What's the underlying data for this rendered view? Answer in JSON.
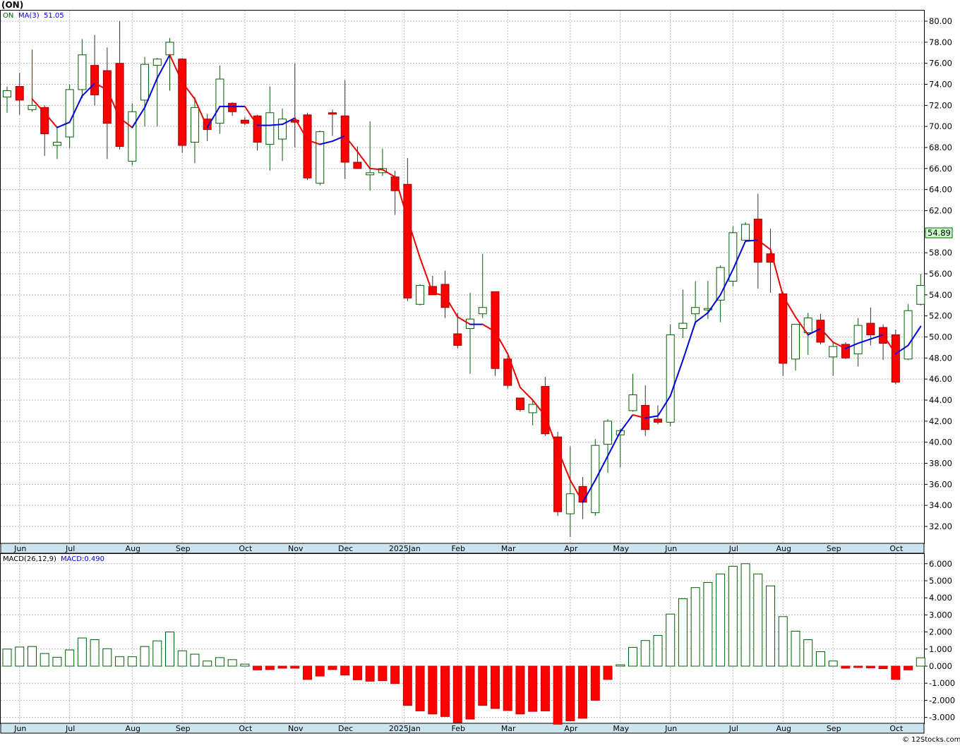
{
  "header": {
    "ticker": "(ON)"
  },
  "legend": {
    "symbol": "ON",
    "ma_label": "MA(3)",
    "ma_value": "51.05",
    "macd_label": "MACD(26,12,9)",
    "macd_value_label": "MACD:0.490"
  },
  "last_price_label": "54.89",
  "credit": "© 12Stocks.com",
  "colors": {
    "up_body": "#ffffff",
    "up_outline": "#006000",
    "down_body": "#ff0000",
    "ma_down": "#ee0000",
    "ma_up": "#0000dd",
    "axis_band": "#cce4f0",
    "grid": "#bbbbbb",
    "last_price_box": "#ccffcc"
  },
  "chart_data": [
    {
      "type": "candlestick",
      "title": "",
      "timeframe": "weekly",
      "ylim": [
        31,
        81
      ],
      "y_ticks": [
        "32.00",
        "34.00",
        "36.00",
        "38.00",
        "40.00",
        "42.00",
        "44.00",
        "46.00",
        "48.00",
        "50.00",
        "52.00",
        "54.00",
        "56.00",
        "58.00",
        "60.00",
        "62.00",
        "64.00",
        "66.00",
        "68.00",
        "70.00",
        "72.00",
        "74.00",
        "76.00",
        "78.00",
        "80.00"
      ],
      "x_ticks": [
        {
          "label": "Jun",
          "index": 1
        },
        {
          "label": "Jul",
          "index": 5
        },
        {
          "label": "Aug",
          "index": 10
        },
        {
          "label": "Sep",
          "index": 14
        },
        {
          "label": "Oct",
          "index": 19
        },
        {
          "label": "Nov",
          "index": 23
        },
        {
          "label": "Dec",
          "index": 27
        },
        {
          "label": "2025Jan",
          "index": 32
        },
        {
          "label": "Feb",
          "index": 36
        },
        {
          "label": "Mar",
          "index": 40
        },
        {
          "label": "Apr",
          "index": 45
        },
        {
          "label": "May",
          "index": 49
        },
        {
          "label": "Jun",
          "index": 53
        },
        {
          "label": "Jul",
          "index": 58
        },
        {
          "label": "Aug",
          "index": 62
        },
        {
          "label": "Sep",
          "index": 66
        },
        {
          "label": "Oct",
          "index": 71
        }
      ],
      "candles": [
        [
          72.8,
          73.8,
          71.3,
          73.4
        ],
        [
          73.8,
          75.1,
          71.1,
          72.5
        ],
        [
          71.6,
          77.3,
          71.4,
          72.0
        ],
        [
          71.8,
          72.0,
          67.2,
          69.3
        ],
        [
          68.2,
          69.9,
          66.9,
          68.5
        ],
        [
          69.0,
          74.0,
          67.9,
          73.5
        ],
        [
          73.5,
          78.3,
          72.7,
          76.8
        ],
        [
          75.8,
          78.7,
          72.0,
          73.0
        ],
        [
          75.3,
          77.5,
          66.9,
          70.3
        ],
        [
          76.0,
          80.0,
          67.8,
          68.1
        ],
        [
          66.7,
          72.2,
          66.3,
          71.4
        ],
        [
          72.5,
          76.6,
          70.0,
          75.9
        ],
        [
          75.8,
          76.5,
          70.0,
          76.4
        ],
        [
          76.8,
          78.4,
          73.4,
          78.0
        ],
        [
          76.4,
          76.5,
          67.5,
          68.2
        ],
        [
          68.5,
          72.8,
          66.5,
          71.8
        ],
        [
          70.7,
          71.2,
          68.6,
          69.7
        ],
        [
          70.3,
          75.8,
          69.3,
          74.5
        ],
        [
          72.2,
          72.3,
          71.0,
          71.4
        ],
        [
          70.6,
          70.9,
          70.1,
          70.3
        ],
        [
          71.0,
          71.1,
          67.7,
          68.5
        ],
        [
          68.3,
          73.8,
          65.8,
          71.3
        ],
        [
          68.8,
          71.7,
          66.7,
          70.7
        ],
        [
          70.6,
          76.0,
          68.0,
          70.4
        ],
        [
          71.1,
          71.3,
          64.9,
          65.1
        ],
        [
          64.6,
          69.6,
          64.4,
          69.5
        ],
        [
          71.3,
          71.6,
          69.1,
          71.2
        ],
        [
          71.0,
          74.4,
          65.0,
          66.6
        ],
        [
          66.6,
          68.1,
          66.1,
          66.0
        ],
        [
          65.4,
          70.5,
          63.9,
          65.6
        ],
        [
          65.6,
          67.9,
          65.3,
          66.0
        ],
        [
          65.2,
          65.8,
          61.6,
          63.9
        ],
        [
          64.5,
          67.0,
          53.4,
          53.7
        ],
        [
          53.1,
          55.0,
          53.0,
          54.9
        ],
        [
          54.8,
          55.8,
          54.1,
          54.0
        ],
        [
          55.0,
          56.3,
          51.8,
          52.8
        ],
        [
          50.3,
          52.3,
          48.9,
          49.2
        ],
        [
          50.8,
          54.2,
          46.5,
          51.7
        ],
        [
          52.2,
          57.9,
          51.8,
          52.8
        ],
        [
          54.3,
          54.3,
          46.3,
          47.0
        ],
        [
          47.9,
          48.2,
          45.1,
          45.4
        ],
        [
          44.2,
          44.2,
          42.9,
          43.1
        ],
        [
          42.8,
          44.0,
          41.6,
          43.6
        ],
        [
          45.3,
          46.2,
          40.6,
          40.8
        ],
        [
          40.5,
          41.0,
          33.0,
          33.4
        ],
        [
          33.2,
          39.6,
          31.0,
          35.1
        ],
        [
          35.8,
          36.7,
          32.7,
          34.3
        ],
        [
          33.3,
          40.3,
          33.0,
          39.7
        ],
        [
          39.8,
          42.2,
          37.1,
          42.0
        ],
        [
          40.7,
          41.3,
          37.6,
          41.1
        ],
        [
          43.0,
          46.5,
          42.9,
          44.5
        ],
        [
          43.5,
          45.4,
          40.6,
          41.2
        ],
        [
          42.2,
          43.5,
          41.7,
          41.9
        ],
        [
          41.9,
          51.2,
          41.5,
          50.2
        ],
        [
          50.8,
          54.5,
          49.9,
          51.3
        ],
        [
          52.2,
          55.3,
          51.2,
          52.8
        ],
        [
          52.6,
          55.3,
          51.7,
          52.7
        ],
        [
          53.5,
          56.8,
          51.4,
          56.6
        ],
        [
          55.3,
          60.5,
          54.8,
          59.9
        ],
        [
          59.2,
          60.9,
          59.1,
          60.7
        ],
        [
          61.2,
          63.6,
          54.6,
          57.1
        ],
        [
          57.9,
          60.3,
          54.2,
          57.1
        ],
        [
          54.1,
          54.3,
          46.3,
          47.5
        ],
        [
          47.9,
          51.2,
          46.8,
          51.2
        ],
        [
          50.4,
          52.3,
          48.3,
          51.8
        ],
        [
          51.6,
          52.2,
          49.3,
          49.5
        ],
        [
          48.1,
          49.5,
          46.3,
          49.1
        ],
        [
          49.3,
          49.5,
          47.9,
          48.0
        ],
        [
          48.4,
          51.8,
          47.2,
          51.1
        ],
        [
          51.3,
          52.8,
          49.2,
          50.2
        ],
        [
          50.9,
          51.2,
          47.8,
          49.4
        ],
        [
          50.2,
          50.7,
          45.5,
          45.7
        ],
        [
          47.9,
          53.1,
          47.8,
          52.5
        ],
        [
          53.1,
          56.0,
          53.0,
          54.89
        ]
      ],
      "ma3": [
        null,
        null,
        72.6,
        71.3,
        69.9,
        70.4,
        72.9,
        74.1,
        73.5,
        70.8,
        69.9,
        71.8,
        74.6,
        76.8,
        74.2,
        72.6,
        69.9,
        71.9,
        71.9,
        71.9,
        70.1,
        70.1,
        70.2,
        70.8,
        68.7,
        68.3,
        68.6,
        69.1,
        67.6,
        66.0,
        65.9,
        65.2,
        61.2,
        57.5,
        54.2,
        53.9,
        51.9,
        51.2,
        51.2,
        50.5,
        48.4,
        45.2,
        44.0,
        42.5,
        39.3,
        36.4,
        34.3,
        36.4,
        38.7,
        41.0,
        42.6,
        42.3,
        42.5,
        44.4,
        47.8,
        51.4,
        52.3,
        54.0,
        56.4,
        59.1,
        59.2,
        58.3,
        53.9,
        51.9,
        50.2,
        50.8,
        49.5,
        48.9,
        49.4,
        49.8,
        50.2,
        48.4,
        49.2,
        51.0
      ],
      "macd_label": "MACD(26,12,9)",
      "macd_ylim": [
        -3.5,
        6.5
      ],
      "macd_ticks": [
        "-3.000",
        "-2.000",
        "-1.000",
        "0.000",
        "1.000",
        "2.000",
        "3.000",
        "4.000",
        "5.000",
        "6.000"
      ],
      "macd": [
        1.0,
        1.12,
        1.15,
        0.74,
        0.52,
        0.95,
        1.65,
        1.55,
        1.02,
        0.55,
        0.55,
        1.15,
        1.48,
        2.0,
        0.9,
        0.7,
        0.3,
        0.5,
        0.38,
        0.12,
        -0.22,
        -0.2,
        -0.12,
        -0.12,
        -0.78,
        -0.58,
        -0.2,
        -0.52,
        -0.8,
        -0.88,
        -0.85,
        -1.02,
        -2.3,
        -2.62,
        -2.8,
        -2.95,
        -3.3,
        -3.1,
        -2.3,
        -2.48,
        -2.6,
        -2.8,
        -2.65,
        -2.62,
        -3.4,
        -3.2,
        -3.05,
        -2.0,
        -0.78,
        0.08,
        1.1,
        1.5,
        1.8,
        3.05,
        3.95,
        4.6,
        4.9,
        5.4,
        5.85,
        6.0,
        5.4,
        4.7,
        2.9,
        2.05,
        1.55,
        0.85,
        0.3,
        -0.12,
        -0.08,
        -0.1,
        -0.15,
        -0.78,
        -0.22,
        0.49
      ]
    }
  ]
}
